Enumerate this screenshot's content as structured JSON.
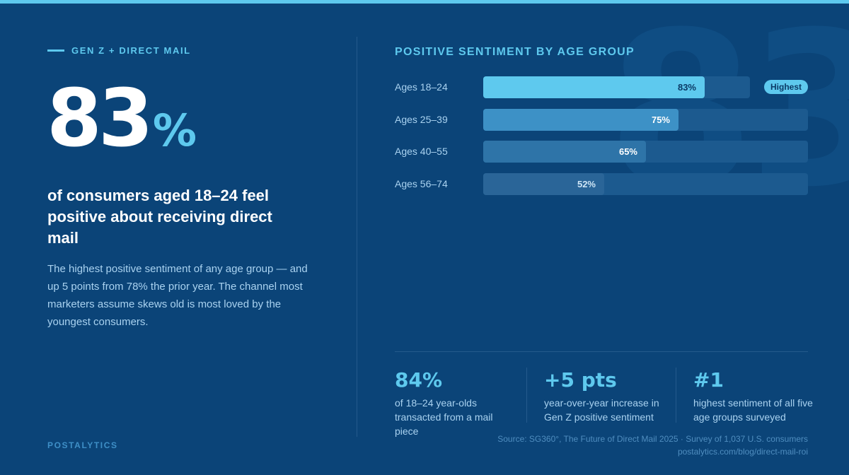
{
  "eyebrow": "GEN Z + DIRECT MAIL",
  "hero": {
    "number": "83",
    "percent": "%"
  },
  "background_numeral": "83",
  "headline": "of consumers aged 18–24 feel positive about receiving direct mail",
  "body": "The highest positive sentiment of any age group — and up 5 points from 78% the prior year. The channel most marketers assume skews old is most loved by the youngest consumers.",
  "brand": "POSTALYTICS",
  "chart_data": {
    "type": "bar",
    "orientation": "horizontal",
    "title": "POSITIVE SENTIMENT BY AGE GROUP",
    "categories": [
      "Ages 18–24",
      "Ages 25–39",
      "Ages 40–55",
      "Ages 56–74"
    ],
    "values": [
      83,
      75,
      65,
      52
    ],
    "value_labels": [
      "83%",
      "75%",
      "65%",
      "52%"
    ],
    "xlim": [
      0,
      100
    ],
    "badge": {
      "category": "Ages 18–24",
      "text": "Highest"
    },
    "colors": [
      "#5ec9ee",
      "#3d91c6",
      "#2e74a8",
      "#2a6598"
    ],
    "track_color": "#1c5a8f",
    "grid": false
  },
  "stats": [
    {
      "value": "84%",
      "desc": "of 18–24 year-olds transacted from a mail piece"
    },
    {
      "value": "+5 pts",
      "desc": "year-over-year increase in Gen Z positive sentiment"
    },
    {
      "value": "#1",
      "desc": "highest sentiment of all five age groups surveyed"
    }
  ],
  "source": {
    "line1": "Source: SG360°, The Future of Direct Mail 2025 · Survey of 1,037 U.S. consumers",
    "line2": "postalytics.com/blog/direct-mail-roi"
  },
  "colors": {
    "background": "#0b4478",
    "accent": "#5ec9ee",
    "muted_text": "#a9d2f0"
  }
}
